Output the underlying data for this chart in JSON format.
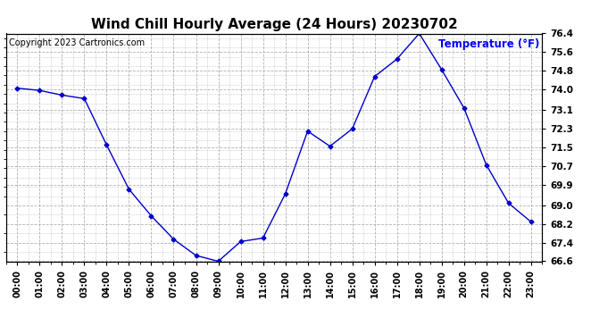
{
  "title": "Wind Chill Hourly Average (24 Hours) 20230702",
  "copyright": "Copyright 2023 Cartronics.com",
  "legend_label": "Temperature (°F)",
  "hours": [
    "00:00",
    "01:00",
    "02:00",
    "03:00",
    "04:00",
    "05:00",
    "06:00",
    "07:00",
    "08:00",
    "09:00",
    "10:00",
    "11:00",
    "12:00",
    "13:00",
    "14:00",
    "15:00",
    "16:00",
    "17:00",
    "18:00",
    "19:00",
    "20:00",
    "21:00",
    "22:00",
    "23:00"
  ],
  "values": [
    74.05,
    73.95,
    73.75,
    73.6,
    71.6,
    69.7,
    68.55,
    67.55,
    66.85,
    66.6,
    67.45,
    67.6,
    69.5,
    72.2,
    71.55,
    72.3,
    74.55,
    75.3,
    76.4,
    74.85,
    73.2,
    70.75,
    69.1,
    68.3
  ],
  "ylim_min": 66.6,
  "ylim_max": 76.4,
  "yticks": [
    66.6,
    67.4,
    68.2,
    69.0,
    69.9,
    70.7,
    71.5,
    72.3,
    73.1,
    74.0,
    74.8,
    75.6,
    76.4
  ],
  "line_color": "#0000cc",
  "marker": "D",
  "marker_size": 2.5,
  "title_fontsize": 11,
  "copyright_fontsize": 7,
  "legend_fontsize": 8.5,
  "legend_color": "#0000ff",
  "bg_color": "#ffffff",
  "grid_color": "#aaaaaa",
  "tick_label_fontsize": 7,
  "ytick_label_fontsize": 7.5
}
